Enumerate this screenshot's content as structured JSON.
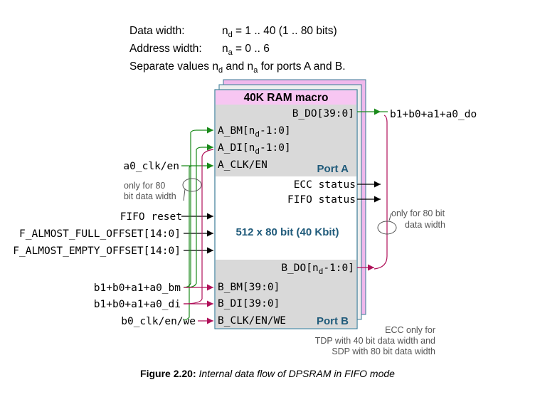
{
  "header": {
    "data_width_label": "Data width:",
    "data_width_value": "n",
    "data_width_sub": "d",
    "data_width_rest": " = 1 .. 40 (1 .. 80 bits)",
    "address_width_label": "Address width:",
    "address_width_value": "n",
    "address_width_sub": "a",
    "address_width_rest": " = 0 .. 6",
    "separate_pre": "Separate values n",
    "separate_sub1": "d",
    "separate_mid": " and n",
    "separate_sub2": "a",
    "separate_post": " for ports A and B."
  },
  "macro": {
    "title": "40K RAM macro",
    "size_label": "512 x 80 bit  (40 Kbit)",
    "port_a": "Port A",
    "port_b": "Port B"
  },
  "pins": {
    "b_do_39": "B_DO[39:0]",
    "a_bm_pre": "A_BM[n",
    "a_bm_sub": "d",
    "a_bm_post": "-1:0]",
    "a_di_pre": "A_DI[n",
    "a_di_sub": "d",
    "a_di_post": "-1:0]",
    "a_clk": "A_CLK/EN",
    "ecc_status": "ECC status",
    "fifo_status": "FIFO status",
    "b_do_nd_pre": "B_DO[n",
    "b_do_nd_sub": "d",
    "b_do_nd_post": "-1:0]",
    "b_bm": "B_BM[39:0]",
    "b_di": "B_DI[39:0]",
    "b_clk": "B_CLK/EN/WE"
  },
  "signals": {
    "do_out": "b1+b0+a1+a0_do",
    "a0_clk": "a0_clk/en",
    "fifo_reset": "FIFO reset",
    "almost_full": "F_ALMOST_FULL_OFFSET[14:0]",
    "almost_empty": "F_ALMOST_EMPTY_OFFSET[14:0]",
    "bm_in": "b1+b0+a1+a0_bm",
    "di_in": "b1+b0+a1+a0_di",
    "b0_clk": "b0_clk/en/we"
  },
  "notes": {
    "left_line1": "only for 80",
    "left_line2": "bit data width",
    "right_line1": "only for 80 bit",
    "right_line2": "data width",
    "ecc_line1": "ECC only for",
    "ecc_line2": "TDP with 40 bit data width and",
    "ecc_line3": "SDP with 80 bit data width"
  },
  "caption": {
    "label": "Figure 2.20:",
    "text": " Internal data flow of DPSRAM in FIFO mode"
  },
  "colors": {
    "green": "#1a8a1a",
    "magenta": "#b0115a",
    "gray_band": "#d9d9d9",
    "pink_title": "#f7c6f2",
    "back_panel": "#f0b8ec",
    "border": "#3a7a96",
    "port_text": "#1f5a7a"
  }
}
